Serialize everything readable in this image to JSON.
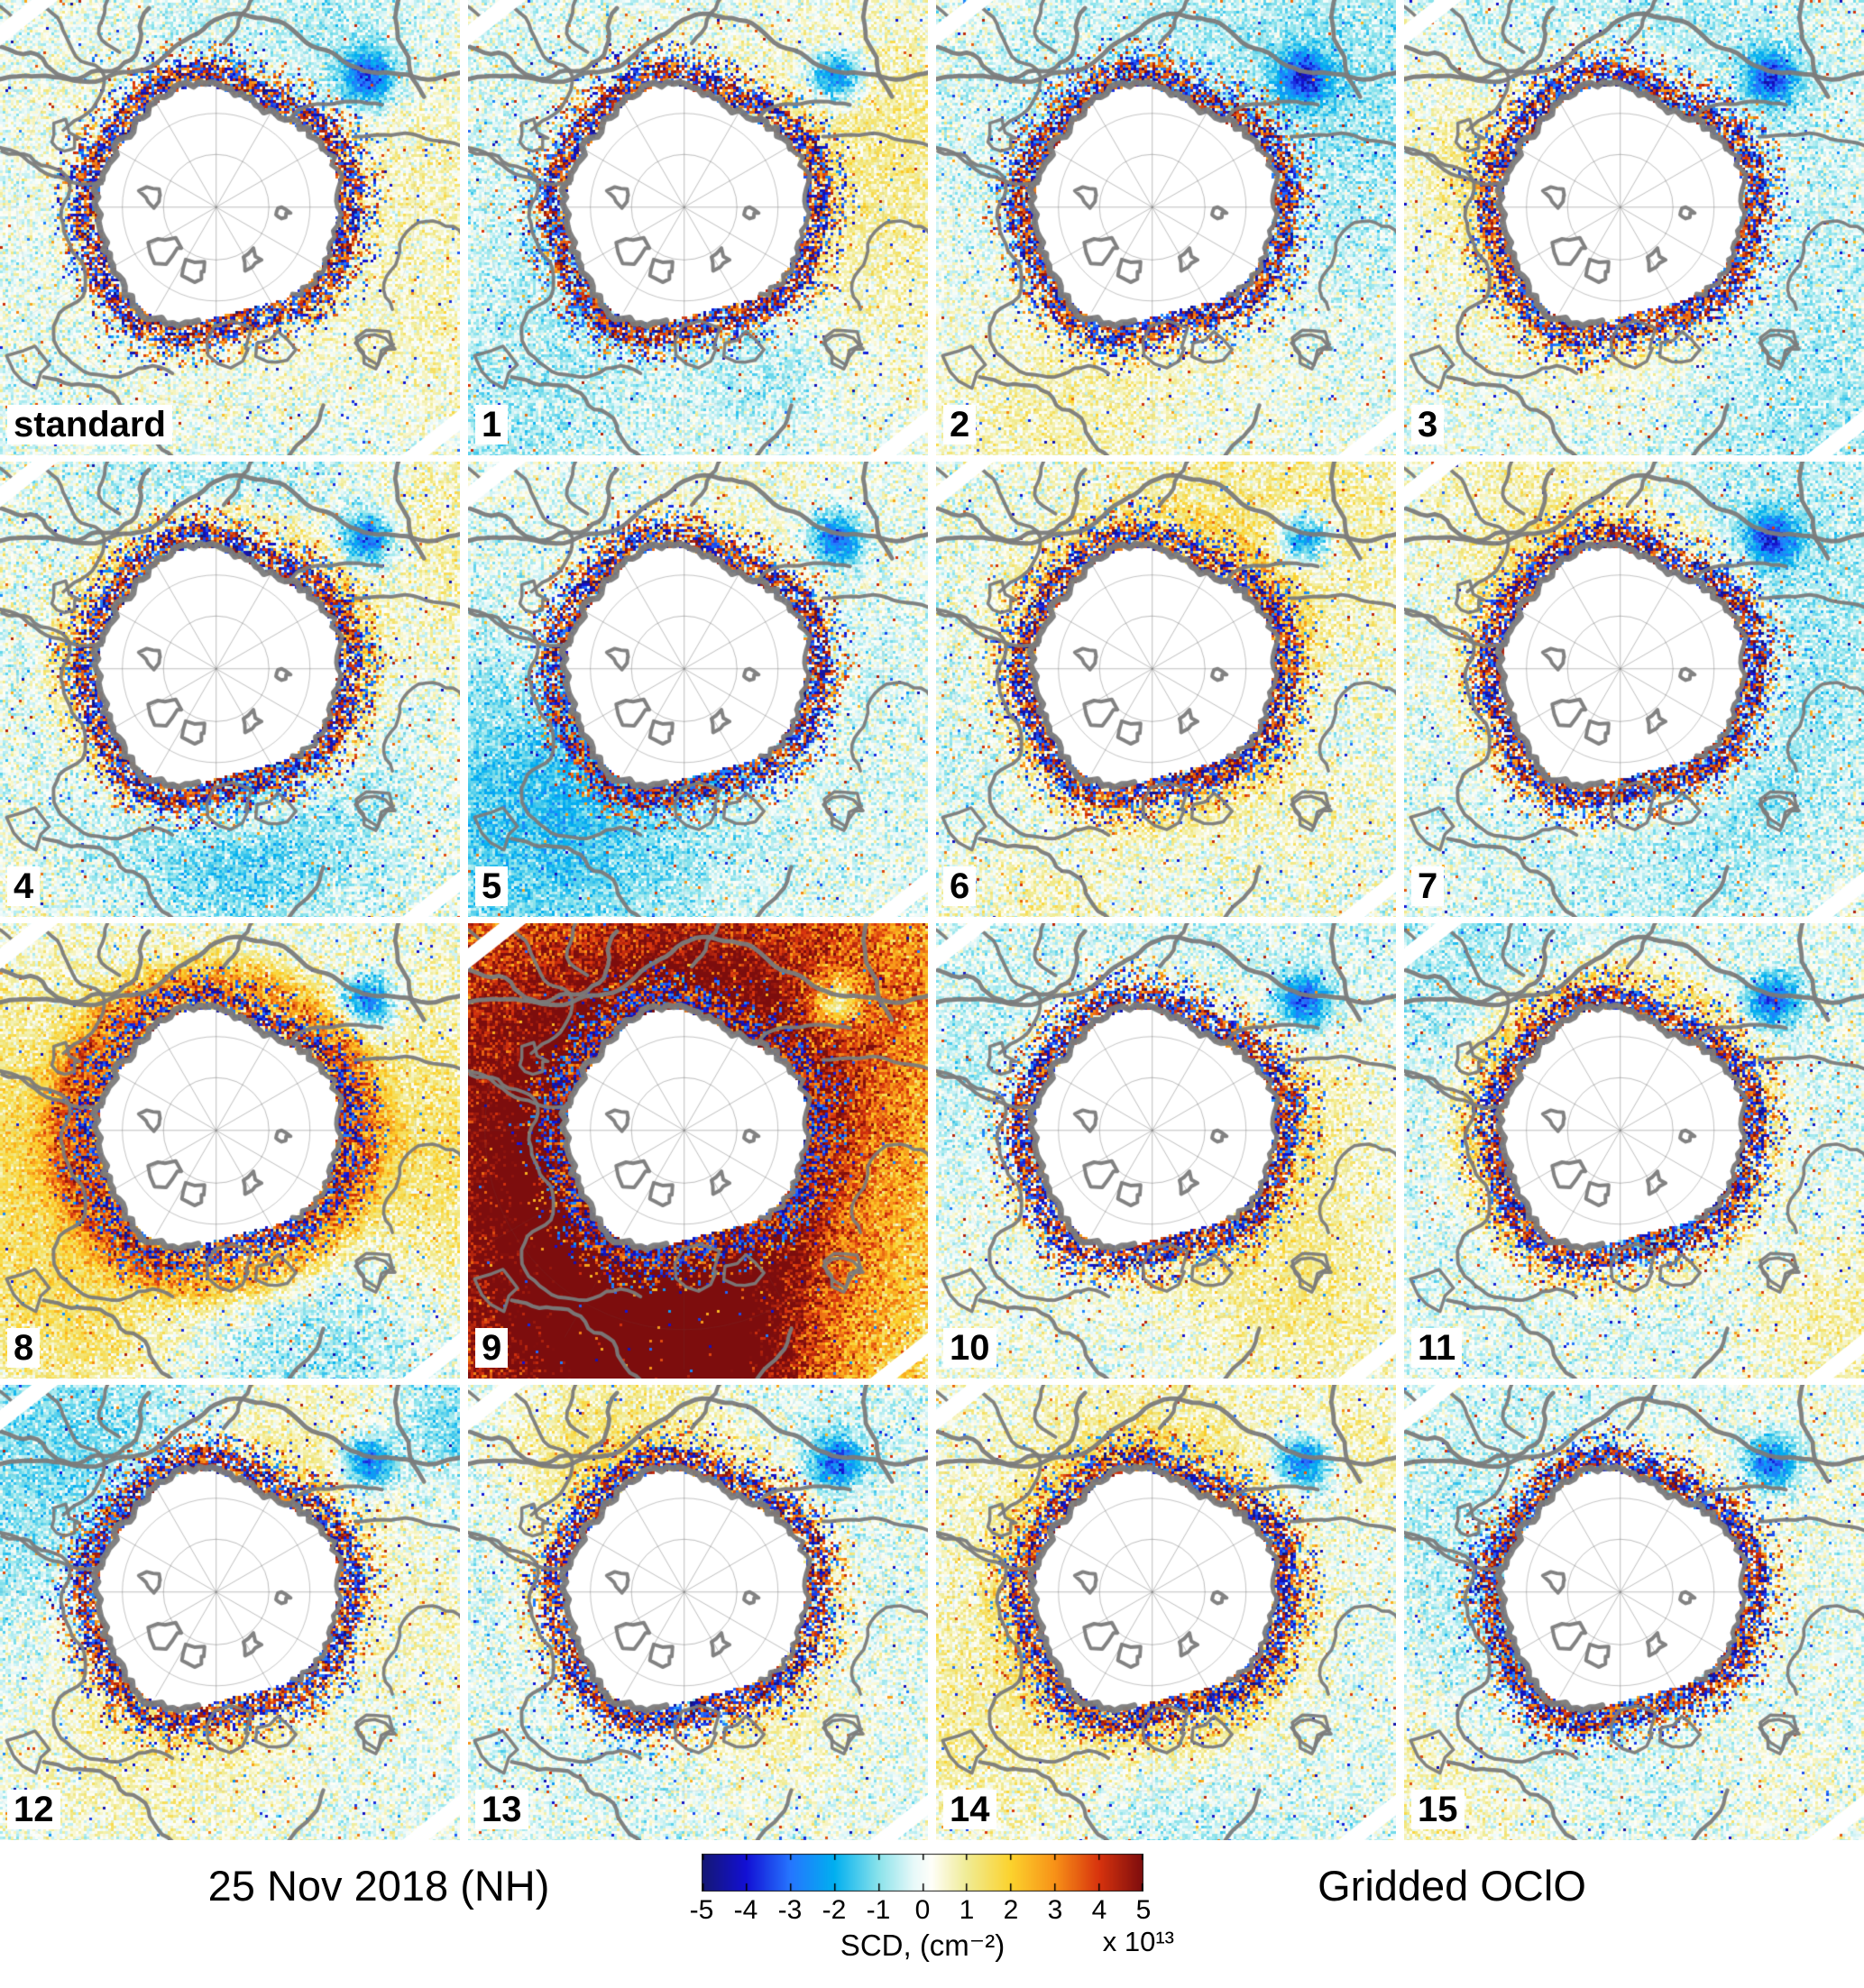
{
  "figure": {
    "caption_left": "25 Nov 2018 (NH)",
    "caption_right": "Gridded OClO",
    "panels": [
      {
        "id": "standard",
        "label": "standard"
      },
      {
        "id": "1",
        "label": "1"
      },
      {
        "id": "2",
        "label": "2"
      },
      {
        "id": "3",
        "label": "3"
      },
      {
        "id": "4",
        "label": "4"
      },
      {
        "id": "5",
        "label": "5"
      },
      {
        "id": "6",
        "label": "6"
      },
      {
        "id": "7",
        "label": "7"
      },
      {
        "id": "8",
        "label": "8"
      },
      {
        "id": "9",
        "label": "9"
      },
      {
        "id": "10",
        "label": "10"
      },
      {
        "id": "11",
        "label": "11"
      },
      {
        "id": "12",
        "label": "12"
      },
      {
        "id": "13",
        "label": "13"
      },
      {
        "id": "14",
        "label": "14"
      },
      {
        "id": "15",
        "label": "15"
      }
    ],
    "colorbar": {
      "ticks": [
        "-5",
        "-4",
        "-3",
        "-2",
        "-1",
        "0",
        "1",
        "2",
        "3",
        "4",
        "5"
      ],
      "label": "SCD, (cm⁻²)",
      "multiplier": "x 10¹³"
    }
  },
  "chart_data": {
    "type": "heatmap",
    "title": "Gridded OClO — 25 Nov 2018 (NH)",
    "layout": {
      "rows": 4,
      "cols": 4,
      "legend_position": "bottom-center"
    },
    "panel_labels": [
      "standard",
      "1",
      "2",
      "3",
      "4",
      "5",
      "6",
      "7",
      "8",
      "9",
      "10",
      "11",
      "12",
      "13",
      "14",
      "15"
    ],
    "colorbar": {
      "label": "SCD, (cm⁻²)",
      "scale_factor": "x 10¹³",
      "min": -5,
      "max": 5,
      "ticks": [
        -5,
        -4,
        -3,
        -2,
        -1,
        0,
        1,
        2,
        3,
        4,
        5
      ]
    },
    "projection": "north-polar stereographic map panels, white polar cap (no data) with gray coastlines and graticule",
    "date_label": "25 Nov 2018 (NH)",
    "product_label": "Gridded OClO"
  }
}
